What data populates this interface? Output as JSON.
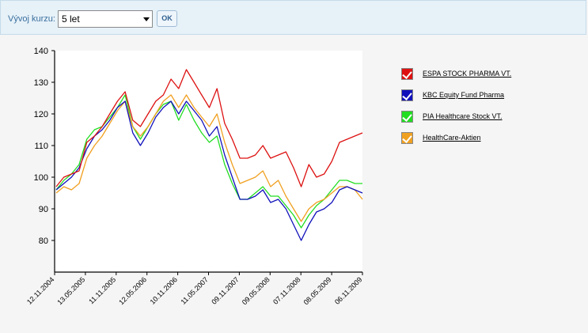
{
  "toolbar": {
    "label": "Vývoj kurzu:",
    "period_value": "5 let",
    "ok_label": "OK"
  },
  "legend": [
    {
      "label": "ESPA STOCK PHARMA VT.",
      "color": "#dd1111"
    },
    {
      "label": "KBC Equity Fund Pharma",
      "color": "#1111bb"
    },
    {
      "label": "PIA Healthcare Stock VT.",
      "color": "#22dd22"
    },
    {
      "label": "HealthCare-Aktien",
      "color": "#f0a020"
    }
  ],
  "chart_data": {
    "type": "line",
    "ylim": [
      70,
      140
    ],
    "yticks": [
      80,
      90,
      100,
      110,
      120,
      130,
      140
    ],
    "x_ticks": [
      "12.11.2004",
      "13.05.2005",
      "11.11.2005",
      "12.05.2006",
      "10.11.2006",
      "11.05.2007",
      "09.11.2007",
      "09.05.2008",
      "07.11.2008",
      "08.05.2009",
      "06.11.2009"
    ],
    "grid": false,
    "legend_position": "right",
    "series": [
      {
        "name": "ESPA STOCK PHARMA VT.",
        "color": "#dd1111",
        "values": [
          97,
          100,
          101,
          102,
          111,
          113,
          116,
          120,
          124,
          127,
          118,
          116,
          120,
          124,
          126,
          131,
          128,
          134,
          130,
          126,
          122,
          128,
          117,
          112,
          106,
          106,
          107,
          110,
          106,
          107,
          108,
          103,
          97,
          104,
          100,
          101,
          105,
          111,
          112,
          113,
          114
        ]
      },
      {
        "name": "KBC Equity Fund Pharma",
        "color": "#1111bb",
        "values": [
          96,
          98,
          100,
          103,
          109,
          113,
          115,
          118,
          122,
          124,
          114,
          110,
          114,
          119,
          122,
          124,
          120,
          124,
          121,
          118,
          113,
          116,
          107,
          100,
          93,
          93,
          94,
          96,
          92,
          93,
          90,
          85,
          80,
          85,
          89,
          90,
          92,
          96,
          97,
          96,
          95
        ]
      },
      {
        "name": "PIA Healthcare Stock VT.",
        "color": "#22dd22",
        "values": [
          96,
          99,
          101,
          104,
          112,
          115,
          116,
          119,
          122,
          126,
          116,
          112,
          116,
          120,
          123,
          124,
          118,
          123,
          118,
          114,
          111,
          113,
          104,
          98,
          93,
          93,
          95,
          97,
          94,
          94,
          91,
          88,
          84,
          88,
          91,
          93,
          96,
          99,
          99,
          98,
          98
        ]
      },
      {
        "name": "HealthCare-Aktien",
        "color": "#f0a020",
        "values": [
          95,
          97,
          96,
          98,
          106,
          110,
          113,
          117,
          121,
          124,
          116,
          113,
          116,
          120,
          124,
          126,
          122,
          126,
          122,
          119,
          116,
          120,
          111,
          104,
          98,
          99,
          100,
          102,
          97,
          99,
          94,
          90,
          86,
          90,
          92,
          93,
          95,
          97,
          97,
          96,
          93
        ]
      }
    ]
  }
}
